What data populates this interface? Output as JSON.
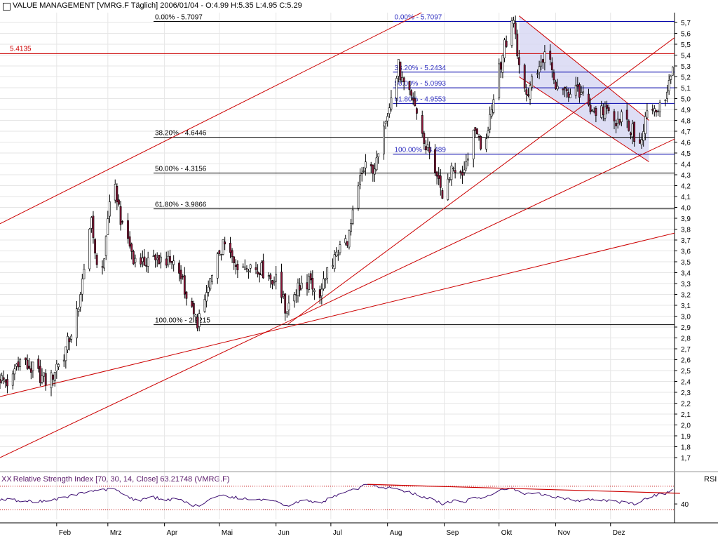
{
  "header": {
    "title": "VALUE MANAGEMENT [VMRG.F  Täglich] 2006/01/04 - O:4.99 H:5.35 L:4.95 C:5.29"
  },
  "rsi_header": {
    "icon": "XX",
    "label": "Relative Strength Index [70, 30, 14, Close] 63.21748 (VMRG.F)",
    "side_label": "RSI"
  },
  "colors": {
    "grid": "#e6e6e6",
    "candle_up": "#ffffff",
    "candle_down": "#8b1538",
    "candle_outline": "#000000",
    "trendline": "#cc0000",
    "fib_line": "#000000",
    "fib_blue_text": "#3030c0",
    "channel_fill": "#d6d6f2",
    "rsi_line": "#3a0a70",
    "rsi_ref": "#c00000"
  },
  "chart_data": [
    {
      "type": "candlestick",
      "ylim": [
        1.6,
        5.8
      ],
      "y_ticks": [
        "5,7",
        "5,6",
        "5,5",
        "5,4",
        "5,3",
        "5,2",
        "5,1",
        "5,0",
        "4,9",
        "4,8",
        "4,7",
        "4,6",
        "4,5",
        "4,4",
        "4,3",
        "4,2",
        "4,1",
        "4,0",
        "3,9",
        "3,8",
        "3,7",
        "3,6",
        "3,5",
        "3,4",
        "3,3",
        "3,2",
        "3,1",
        "3,0",
        "2,9",
        "2,8",
        "2,7",
        "2,6",
        "2,5",
        "2,4",
        "2,3",
        "2,2",
        "2,1",
        "2,0",
        "1,9",
        "1,8",
        "1,7"
      ],
      "x_ticks": [
        "Feb",
        "Mrz",
        "Apr",
        "Mai",
        "Jun",
        "Jul",
        "Aug",
        "Sep",
        "Okt",
        "Nov",
        "Dez"
      ],
      "x_tick_days": [
        31,
        59,
        90,
        120,
        151,
        181,
        212,
        243,
        273,
        304,
        334
      ],
      "day_range": [
        0,
        369
      ],
      "last_close": 5.29,
      "horizontal_level": {
        "value": 5.4135,
        "label": "5.4135"
      },
      "fib_levels_major": [
        {
          "label": "0.00% - 5.7097",
          "value": 5.7097
        },
        {
          "label": "38.20% - 4.6446",
          "value": 4.6446
        },
        {
          "label": "50.00% - 4.3156",
          "value": 4.3156
        },
        {
          "label": "61.80% - 3.9866",
          "value": 3.9866
        },
        {
          "label": "100.00% - 2.9215",
          "value": 2.9215
        }
      ],
      "fib_levels_minor": [
        {
          "label": "0.00% - 5.7097",
          "value": 5.7097
        },
        {
          "label": "38.20% - 5.2434",
          "value": 5.2434
        },
        {
          "label": "50.00% - 5.0993",
          "value": 5.0993
        },
        {
          "label": "61.80% - 4.9553",
          "value": 4.9553
        },
        {
          "label": "100.00% - 4.489",
          "value": 4.489
        }
      ],
      "trendlines": [
        {
          "x1": 0,
          "y1": 3.85,
          "x2": 372,
          "y2": 6.98
        },
        {
          "x1": 0,
          "y1": 2.26,
          "x2": 373,
          "y2": 3.78
        },
        {
          "x1": 0,
          "y1": 1.7,
          "x2": 373,
          "y2": 4.66
        },
        {
          "x1": 157,
          "y1": 2.92,
          "x2": 373,
          "y2": 5.61
        }
      ],
      "channel": {
        "upper": [
          [
            284,
            5.76
          ],
          [
            355,
            4.8
          ]
        ],
        "lower": [
          [
            284,
            5.2
          ],
          [
            355,
            4.42
          ]
        ]
      },
      "anchors": [
        [
          0,
          2.43
        ],
        [
          5,
          2.38
        ],
        [
          10,
          2.6
        ],
        [
          14,
          2.55
        ],
        [
          19,
          2.5
        ],
        [
          24,
          2.42
        ],
        [
          27,
          2.38
        ],
        [
          31,
          2.55
        ],
        [
          35,
          2.65
        ],
        [
          40,
          2.9
        ],
        [
          44,
          3.2
        ],
        [
          47,
          3.5
        ],
        [
          50,
          3.85
        ],
        [
          54,
          3.35
        ],
        [
          57,
          3.55
        ],
        [
          60,
          4.05
        ],
        [
          62,
          4.2
        ],
        [
          64,
          4.1
        ],
        [
          67,
          3.8
        ],
        [
          70,
          3.7
        ],
        [
          73,
          3.55
        ],
        [
          76,
          3.4
        ],
        [
          79,
          3.5
        ],
        [
          82,
          3.55
        ],
        [
          85,
          3.5
        ],
        [
          88,
          3.55
        ],
        [
          91,
          3.5
        ],
        [
          96,
          3.45
        ],
        [
          100,
          3.35
        ],
        [
          103,
          3.1
        ],
        [
          106,
          3.0
        ],
        [
          108,
          2.95
        ],
        [
          111,
          3.1
        ],
        [
          114,
          3.25
        ],
        [
          117,
          3.35
        ],
        [
          120,
          3.6
        ],
        [
          123,
          3.65
        ],
        [
          126,
          3.55
        ],
        [
          129,
          3.5
        ],
        [
          132,
          3.45
        ],
        [
          135,
          3.5
        ],
        [
          138,
          3.45
        ],
        [
          141,
          3.45
        ],
        [
          145,
          3.4
        ],
        [
          149,
          3.35
        ],
        [
          153,
          3.3
        ],
        [
          156,
          3.05
        ],
        [
          159,
          3.15
        ],
        [
          162,
          3.25
        ],
        [
          165,
          3.3
        ],
        [
          168,
          3.3
        ],
        [
          171,
          3.3
        ],
        [
          174,
          3.25
        ],
        [
          176,
          3.2
        ],
        [
          179,
          3.45
        ],
        [
          182,
          3.5
        ],
        [
          185,
          3.6
        ],
        [
          188,
          3.65
        ],
        [
          191,
          3.75
        ],
        [
          194,
          4.0
        ],
        [
          197,
          4.25
        ],
        [
          200,
          4.4
        ],
        [
          203,
          4.35
        ],
        [
          206,
          4.4
        ],
        [
          208,
          4.55
        ],
        [
          210,
          4.8
        ],
        [
          212,
          4.9
        ],
        [
          214,
          5.0
        ],
        [
          216,
          5.1
        ],
        [
          218,
          5.3
        ],
        [
          220,
          5.15
        ],
        [
          223,
          5.05
        ],
        [
          226,
          5.0
        ],
        [
          229,
          4.8
        ],
        [
          232,
          4.6
        ],
        [
          235,
          4.5
        ],
        [
          238,
          4.35
        ],
        [
          240,
          4.2
        ],
        [
          242,
          4.05
        ],
        [
          245,
          4.25
        ],
        [
          248,
          4.4
        ],
        [
          251,
          4.3
        ],
        [
          254,
          4.35
        ],
        [
          257,
          4.6
        ],
        [
          260,
          4.75
        ],
        [
          263,
          4.55
        ],
        [
          265,
          4.5
        ],
        [
          268,
          4.85
        ],
        [
          270,
          5.0
        ],
        [
          272,
          5.4
        ],
        [
          274,
          5.3
        ],
        [
          276,
          5.5
        ],
        [
          278,
          5.55
        ],
        [
          280,
          5.7
        ],
        [
          282,
          5.6
        ],
        [
          284,
          5.3
        ],
        [
          286,
          5.1
        ],
        [
          289,
          5.05
        ],
        [
          292,
          5.2
        ],
        [
          295,
          5.3
        ],
        [
          298,
          5.4
        ],
        [
          301,
          5.3
        ],
        [
          304,
          5.1
        ],
        [
          307,
          5.0
        ],
        [
          310,
          5.05
        ],
        [
          313,
          5.1
        ],
        [
          316,
          5.05
        ],
        [
          319,
          5.0
        ],
        [
          322,
          4.95
        ],
        [
          325,
          4.9
        ],
        [
          328,
          4.85
        ],
        [
          331,
          4.9
        ],
        [
          334,
          4.95
        ],
        [
          337,
          4.8
        ],
        [
          340,
          4.85
        ],
        [
          343,
          4.75
        ],
        [
          346,
          4.7
        ],
        [
          349,
          4.55
        ],
        [
          351,
          4.6
        ],
        [
          353,
          4.8
        ],
        [
          356,
          4.95
        ],
        [
          359,
          4.9
        ],
        [
          362,
          4.95
        ],
        [
          364,
          5.05
        ],
        [
          366,
          5.1
        ],
        [
          368,
          5.29
        ]
      ]
    },
    {
      "type": "line",
      "name": "Relative Strength Index",
      "ylim": [
        20,
        85
      ],
      "y_ticks": [
        "40"
      ],
      "reference_levels": [
        70,
        30
      ],
      "divergence_line": {
        "x1": 201,
        "y1": 73,
        "x2": 372,
        "y2": 58
      },
      "anchors": [
        [
          0,
          48
        ],
        [
          10,
          46
        ],
        [
          20,
          44
        ],
        [
          30,
          47
        ],
        [
          40,
          55
        ],
        [
          50,
          62
        ],
        [
          58,
          64
        ],
        [
          62,
          66
        ],
        [
          68,
          55
        ],
        [
          75,
          45
        ],
        [
          82,
          52
        ],
        [
          90,
          48
        ],
        [
          98,
          47
        ],
        [
          104,
          40
        ],
        [
          108,
          36
        ],
        [
          114,
          45
        ],
        [
          120,
          55
        ],
        [
          126,
          52
        ],
        [
          133,
          50
        ],
        [
          140,
          48
        ],
        [
          146,
          45
        ],
        [
          152,
          42
        ],
        [
          156,
          35
        ],
        [
          160,
          40
        ],
        [
          166,
          46
        ],
        [
          172,
          44
        ],
        [
          176,
          40
        ],
        [
          180,
          52
        ],
        [
          186,
          56
        ],
        [
          192,
          62
        ],
        [
          197,
          68
        ],
        [
          201,
          73
        ],
        [
          206,
          70
        ],
        [
          210,
          68
        ],
        [
          214,
          66
        ],
        [
          218,
          64
        ],
        [
          224,
          60
        ],
        [
          230,
          54
        ],
        [
          236,
          48
        ],
        [
          242,
          40
        ],
        [
          248,
          46
        ],
        [
          254,
          44
        ],
        [
          260,
          52
        ],
        [
          266,
          50
        ],
        [
          272,
          62
        ],
        [
          278,
          66
        ],
        [
          282,
          64
        ],
        [
          288,
          56
        ],
        [
          294,
          58
        ],
        [
          300,
          54
        ],
        [
          306,
          50
        ],
        [
          312,
          48
        ],
        [
          318,
          46
        ],
        [
          324,
          48
        ],
        [
          330,
          46
        ],
        [
          336,
          44
        ],
        [
          342,
          42
        ],
        [
          348,
          40
        ],
        [
          352,
          48
        ],
        [
          358,
          54
        ],
        [
          364,
          58
        ],
        [
          368,
          63
        ]
      ]
    }
  ]
}
